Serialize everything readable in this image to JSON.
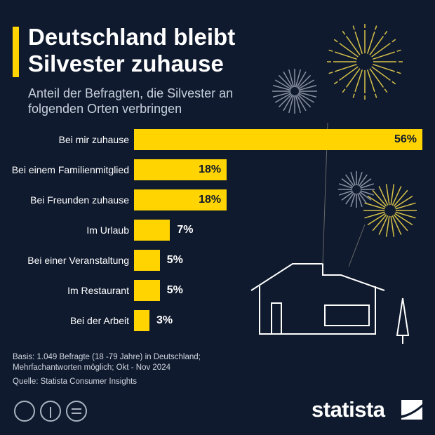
{
  "chart_data": {
    "type": "bar",
    "title": "Deutschland bleibt Silvester zuhause",
    "subtitle": "Anteil der Befragten, die Silvester an folgenden Orten verbringen",
    "categories": [
      "Bei mir zuhause",
      "Bei einem Familienmitglied",
      "Bei Freunden zuhause",
      "Im Urlaub",
      "Bei einer Veranstaltung",
      "Im Restaurant",
      "Bei der Arbeit"
    ],
    "values": [
      56,
      18,
      18,
      7,
      5,
      5,
      3
    ],
    "value_labels": [
      "56%",
      "18%",
      "18%",
      "7%",
      "5%",
      "5%",
      "3%"
    ],
    "color": "#ffd400",
    "note": "Basis: 1.049 Befragte (18 -79 Jahre) in Deutschland; Mehrfachantworten möglich; Okt - Nov 2024",
    "source": "Quelle: Statista Consumer Insights",
    "brand": "statista"
  }
}
